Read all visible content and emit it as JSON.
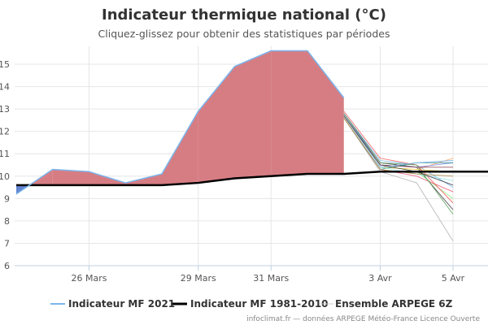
{
  "chart_data": {
    "type": "line",
    "title": "Indicateur thermique national (°C)",
    "subtitle": "Cliquez-glissez pour obtenir des statistiques par périodes",
    "x_ticks": [
      {
        "day": 2,
        "label": "26 Mars"
      },
      {
        "day": 5,
        "label": "29 Mars"
      },
      {
        "day": 7,
        "label": "31 Mars"
      },
      {
        "day": 10,
        "label": "3 Avr"
      },
      {
        "day": 12,
        "label": "5 Avr"
      }
    ],
    "xlim": [
      0,
      13.5
    ],
    "ylim": [
      6,
      15.8
    ],
    "y_ticks": [
      6,
      7,
      8,
      9,
      10,
      11,
      12,
      13,
      14,
      15
    ],
    "grid": true,
    "legend_position": "bottom",
    "series": [
      {
        "name": "Indicateur MF 2021",
        "color": "#7cb5ec",
        "points": [
          [
            0,
            9.2
          ],
          [
            1,
            10.3
          ],
          [
            2,
            10.2
          ],
          [
            3,
            9.7
          ],
          [
            4,
            10.1
          ],
          [
            5,
            12.9
          ],
          [
            6,
            14.9
          ],
          [
            7,
            15.6
          ],
          [
            8,
            15.6
          ],
          [
            9,
            13.5
          ]
        ]
      },
      {
        "name": "Indicateur MF 1981-2010",
        "color": "#000000",
        "points": [
          [
            0,
            9.6
          ],
          [
            1,
            9.6
          ],
          [
            2,
            9.6
          ],
          [
            3,
            9.6
          ],
          [
            4,
            9.6
          ],
          [
            5,
            9.7
          ],
          [
            6,
            9.9
          ],
          [
            7,
            10.0
          ],
          [
            8,
            10.1
          ],
          [
            9,
            10.1
          ],
          [
            10,
            10.2
          ],
          [
            11,
            10.2
          ],
          [
            12,
            10.2
          ],
          [
            13,
            10.2
          ],
          [
            13.5,
            10.2
          ]
        ]
      }
    ],
    "ensemble": {
      "name": "Ensemble ARPEGE 6Z",
      "colors": [
        "#7cb5ec",
        "#434348",
        "#90ed7d",
        "#f7a35c",
        "#8085e9",
        "#f15c80",
        "#e4d354",
        "#2b908f",
        "#f45b5b",
        "#91e8e1",
        "#b0b0b0",
        "#8d4653",
        "#5ea05e",
        "#aa8844"
      ],
      "members": [
        [
          [
            9,
            12.8
          ],
          [
            10,
            10.7
          ],
          [
            11,
            10.5
          ],
          [
            12,
            9.5
          ]
        ],
        [
          [
            9,
            12.8
          ],
          [
            10,
            10.6
          ],
          [
            11,
            10.4
          ],
          [
            12,
            8.5
          ]
        ],
        [
          [
            9,
            12.7
          ],
          [
            10,
            10.5
          ],
          [
            11,
            10.2
          ],
          [
            12,
            9.0
          ]
        ],
        [
          [
            9,
            12.7
          ],
          [
            10,
            10.4
          ],
          [
            11,
            10.3
          ],
          [
            12,
            10.8
          ]
        ],
        [
          [
            9,
            12.8
          ],
          [
            10,
            10.5
          ],
          [
            11,
            10.4
          ],
          [
            12,
            10.6
          ]
        ],
        [
          [
            9,
            12.6
          ],
          [
            10,
            10.3
          ],
          [
            11,
            10.0
          ],
          [
            12,
            9.3
          ]
        ],
        [
          [
            9,
            12.7
          ],
          [
            10,
            10.4
          ],
          [
            11,
            10.3
          ],
          [
            12,
            10.2
          ]
        ],
        [
          [
            9,
            12.6
          ],
          [
            10,
            10.3
          ],
          [
            11,
            10.6
          ],
          [
            12,
            10.6
          ]
        ],
        [
          [
            9,
            12.9
          ],
          [
            10,
            10.8
          ],
          [
            11,
            10.5
          ],
          [
            12,
            8.8
          ]
        ],
        [
          [
            9,
            12.7
          ],
          [
            10,
            10.4
          ],
          [
            11,
            10.1
          ],
          [
            12,
            9.8
          ]
        ],
        [
          [
            9,
            12.6
          ],
          [
            10,
            10.2
          ],
          [
            11,
            9.7
          ],
          [
            12,
            7.1
          ]
        ],
        [
          [
            9,
            12.7
          ],
          [
            10,
            10.5
          ],
          [
            11,
            10.4
          ],
          [
            12,
            10.4
          ]
        ],
        [
          [
            9,
            12.8
          ],
          [
            10,
            10.6
          ],
          [
            11,
            10.5
          ],
          [
            12,
            8.3
          ]
        ],
        [
          [
            9,
            12.6
          ],
          [
            10,
            10.3
          ],
          [
            11,
            10.1
          ],
          [
            12,
            10.0
          ]
        ],
        [
          [
            9,
            12.7
          ],
          [
            10,
            10.4
          ],
          [
            11,
            10.6
          ],
          [
            12,
            10.7
          ]
        ],
        [
          [
            9,
            12.7
          ],
          [
            10,
            10.5
          ],
          [
            11,
            10.2
          ],
          [
            12,
            9.6
          ]
        ]
      ]
    },
    "fill": {
      "warm": "#d4767c",
      "cold": "#5b7fd0"
    }
  },
  "credits": "infoclimat.fr — données ARPEGE Météo-France Licence Ouverte"
}
